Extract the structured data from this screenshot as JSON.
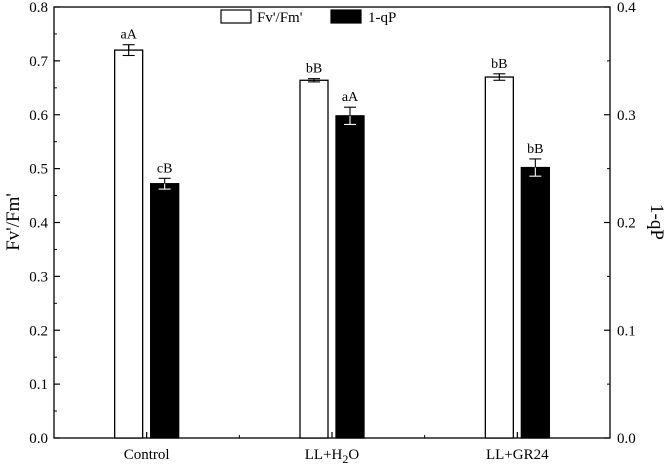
{
  "chart_data": {
    "type": "bar",
    "categories": [
      "Control",
      "LL+H2O",
      "LL+GR24"
    ],
    "category_labels": [
      {
        "parts": [
          {
            "t": "Control"
          }
        ]
      },
      {
        "parts": [
          {
            "t": "LL+H"
          },
          {
            "t": "2",
            "sub": true
          },
          {
            "t": "O"
          }
        ]
      },
      {
        "parts": [
          {
            "t": "LL+GR24"
          }
        ]
      }
    ],
    "series": [
      {
        "name": "Fv'/Fm'",
        "axis": "left",
        "fill": "#ffffff",
        "values": [
          0.72,
          0.664,
          0.67
        ],
        "errors": [
          0.01,
          0.003,
          0.006
        ],
        "labels": [
          "aA",
          "bB",
          "bB"
        ]
      },
      {
        "name": "1-qP",
        "axis": "right",
        "fill": "#000000",
        "values": [
          0.236,
          0.299,
          0.251
        ],
        "errors": [
          0.005,
          0.008,
          0.008
        ],
        "labels": [
          "cB",
          "aA",
          "bB"
        ]
      }
    ],
    "ylabel_left": "Fv'/Fm'",
    "ylabel_right": "1-qP",
    "xlabel": "",
    "ylim_left": [
      0,
      0.8
    ],
    "ylim_right": [
      0,
      0.4
    ],
    "yticks_left": [
      "0.0",
      "0.1",
      "0.2",
      "0.3",
      "0.4",
      "0.5",
      "0.6",
      "0.7",
      "0.8"
    ],
    "yticks_right": [
      "0.0",
      "0.1",
      "0.2",
      "0.3",
      "0.4"
    ],
    "grid": false,
    "legend_position": "top-center"
  }
}
